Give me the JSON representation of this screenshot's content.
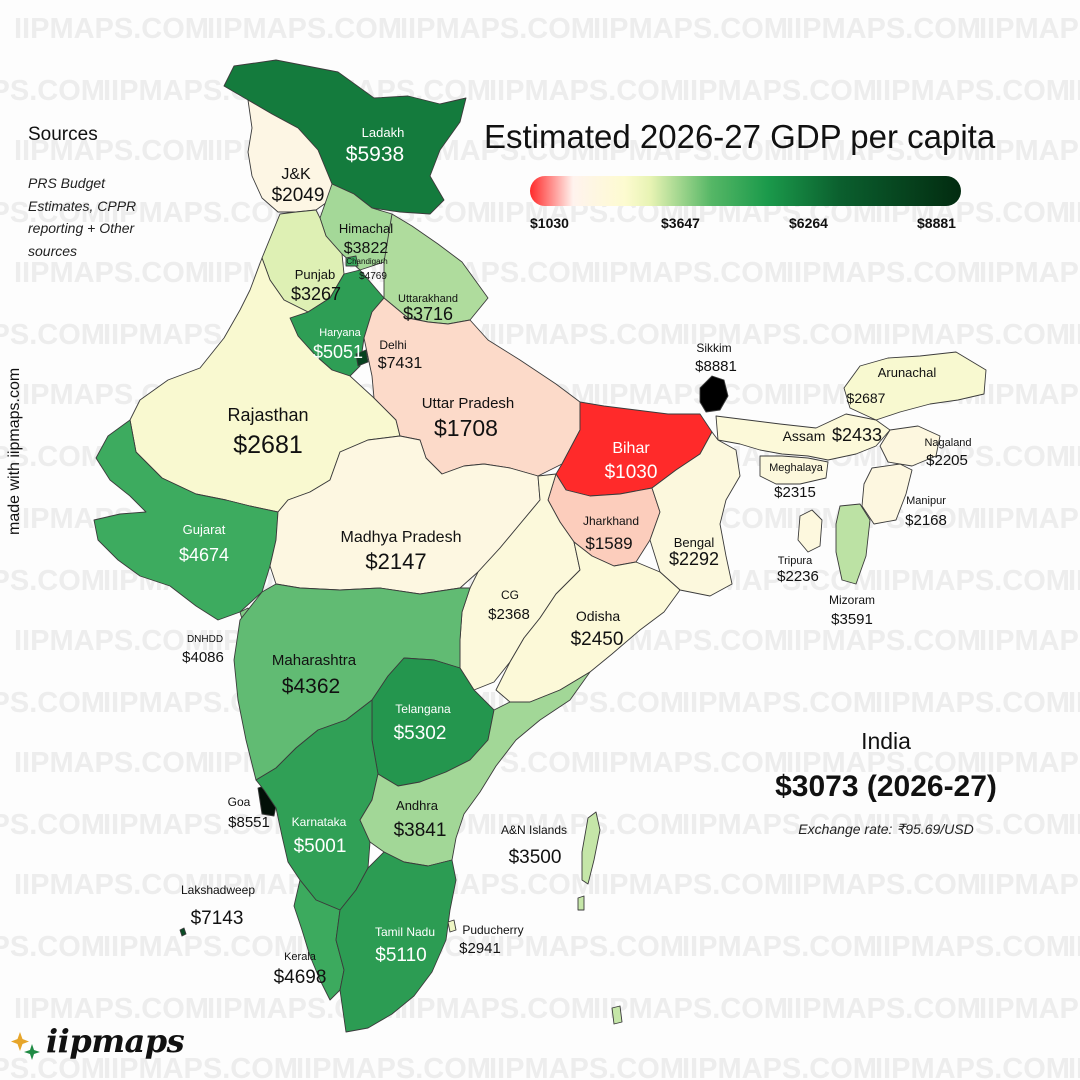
{
  "title": "Estimated 2026-27 GDP per capita",
  "sources": {
    "heading": "Sources",
    "body": "PRS Budget Estimates, CPPR reporting + Other sources"
  },
  "made_with": "made with iipmaps.com",
  "watermark": "IIPMAPS.COM",
  "logo_text": "iipmaps",
  "national": {
    "name": "India",
    "value": "$3073 (2026-27)",
    "exchange_rate": "Exchange rate: ₹95.69/USD"
  },
  "legend": {
    "ticks": [
      "$1030",
      "$3647",
      "$6264",
      "$8881"
    ],
    "min": 1030,
    "max": 8881
  },
  "colors": {
    "lowest": "#ff2a2a",
    "low": "#f8c3ad",
    "mid": "#fdfbd9",
    "high": "#1b9a4b",
    "highest": "#042d12"
  },
  "regions": [
    {
      "id": "ladakh",
      "name": "Ladakh",
      "value": "$5938",
      "gdp": 5938
    },
    {
      "id": "jk",
      "name": "J&K",
      "value": "$2049",
      "gdp": 2049
    },
    {
      "id": "himachal",
      "name": "Himachal",
      "value": "$3822",
      "gdp": 3822
    },
    {
      "id": "chandigarh",
      "name": "Chandigarh",
      "value": "$4769",
      "gdp": 4769
    },
    {
      "id": "punjab",
      "name": "Punjab",
      "value": "$3267",
      "gdp": 3267
    },
    {
      "id": "uttarakhand",
      "name": "Uttarakhand",
      "value": "$3716",
      "gdp": 3716
    },
    {
      "id": "haryana",
      "name": "Haryana",
      "value": "$5051",
      "gdp": 5051
    },
    {
      "id": "delhi",
      "name": "Delhi",
      "value": "$7431",
      "gdp": 7431
    },
    {
      "id": "rajasthan",
      "name": "Rajasthan",
      "value": "$2681",
      "gdp": 2681
    },
    {
      "id": "up",
      "name": "Uttar Pradesh",
      "value": "$1708",
      "gdp": 1708
    },
    {
      "id": "bihar",
      "name": "Bihar",
      "value": "$1030",
      "gdp": 1030
    },
    {
      "id": "sikkim",
      "name": "Sikkim",
      "value": "$8881",
      "gdp": 8881
    },
    {
      "id": "arunachal",
      "name": "Arunachal",
      "value": "$2687",
      "gdp": 2687
    },
    {
      "id": "assam",
      "name": "Assam",
      "value": "$2433",
      "gdp": 2433
    },
    {
      "id": "nagaland",
      "name": "Nagaland",
      "value": "$2205",
      "gdp": 2205
    },
    {
      "id": "meghalaya",
      "name": "Meghalaya",
      "value": "$2315",
      "gdp": 2315
    },
    {
      "id": "manipur",
      "name": "Manipur",
      "value": "$2168",
      "gdp": 2168
    },
    {
      "id": "tripura",
      "name": "Tripura",
      "value": "$2236",
      "gdp": 2236
    },
    {
      "id": "mizoram",
      "name": "Mizoram",
      "value": "$3591",
      "gdp": 3591
    },
    {
      "id": "gujarat",
      "name": "Gujarat",
      "value": "$4674",
      "gdp": 4674
    },
    {
      "id": "mp",
      "name": "Madhya Pradesh",
      "value": "$2147",
      "gdp": 2147
    },
    {
      "id": "jharkhand",
      "name": "Jharkhand",
      "value": "$1589",
      "gdp": 1589
    },
    {
      "id": "bengal",
      "name": "Bengal",
      "value": "$2292",
      "gdp": 2292
    },
    {
      "id": "cg",
      "name": "CG",
      "value": "$2368",
      "gdp": 2368
    },
    {
      "id": "odisha",
      "name": "Odisha",
      "value": "$2450",
      "gdp": 2450
    },
    {
      "id": "dnhdd",
      "name": "DNHDD",
      "value": "$4086",
      "gdp": 4086
    },
    {
      "id": "maharashtra",
      "name": "Maharashtra",
      "value": "$4362",
      "gdp": 4362
    },
    {
      "id": "telangana",
      "name": "Telangana",
      "value": "$5302",
      "gdp": 5302
    },
    {
      "id": "goa",
      "name": "Goa",
      "value": "$8551",
      "gdp": 8551
    },
    {
      "id": "karnataka",
      "name": "Karnataka",
      "value": "$5001",
      "gdp": 5001
    },
    {
      "id": "andhra",
      "name": "Andhra",
      "value": "$3841",
      "gdp": 3841
    },
    {
      "id": "an_islands",
      "name": "A&N Islands",
      "value": "$3500",
      "gdp": 3500
    },
    {
      "id": "lakshadweep",
      "name": "Lakshadweep",
      "value": "$7143",
      "gdp": 7143
    },
    {
      "id": "kerala",
      "name": "Kerala",
      "value": "$4698",
      "gdp": 4698
    },
    {
      "id": "tamil_nadu",
      "name": "Tamil Nadu",
      "value": "$5110",
      "gdp": 5110
    },
    {
      "id": "puducherry",
      "name": "Puducherry",
      "value": "$2941",
      "gdp": 2941
    }
  ]
}
